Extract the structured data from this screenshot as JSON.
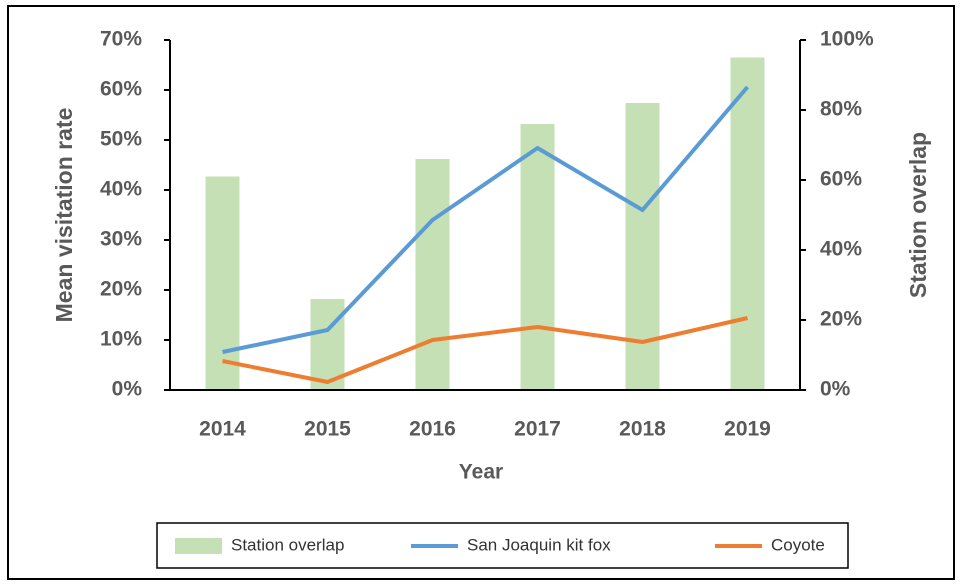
{
  "chart_data": {
    "type": "bar",
    "categories": [
      "2014",
      "2015",
      "2016",
      "2017",
      "2018",
      "2019"
    ],
    "xlabel": "Year",
    "ylabel": "Mean visitation rate",
    "y2label": "Station overlap",
    "ylim": [
      0,
      70
    ],
    "yticks": [
      {
        "value": 0,
        "label": "0%"
      },
      {
        "value": 10,
        "label": "10%"
      },
      {
        "value": 20,
        "label": "20%"
      },
      {
        "value": 30,
        "label": "30%"
      },
      {
        "value": 40,
        "label": "40%"
      },
      {
        "value": 50,
        "label": "50%"
      },
      {
        "value": 60,
        "label": "60%"
      },
      {
        "value": 70,
        "label": "70%"
      }
    ],
    "y2lim": [
      0,
      100
    ],
    "y2ticks": [
      {
        "value": 0,
        "label": "0%"
      },
      {
        "value": 20,
        "label": "20%"
      },
      {
        "value": 40,
        "label": "40%"
      },
      {
        "value": 60,
        "label": "60%"
      },
      {
        "value": 80,
        "label": "80%"
      },
      {
        "value": 100,
        "label": "100%"
      }
    ],
    "legend": "bottom",
    "series": [
      {
        "name": "Station overlap",
        "type": "bar",
        "axis": "y2",
        "color": "#c5e0b4",
        "values": [
          61,
          26,
          66,
          76,
          82,
          95
        ]
      },
      {
        "name": "San Joaquin kit fox",
        "type": "line",
        "color": "#5b9bd5",
        "values": [
          7.6,
          12,
          34,
          48.4,
          36,
          60.6
        ]
      },
      {
        "name": "Coyote",
        "type": "line",
        "color": "#ed7d31",
        "values": [
          5.8,
          1.6,
          10,
          12.6,
          9.6,
          14.4
        ]
      }
    ]
  }
}
